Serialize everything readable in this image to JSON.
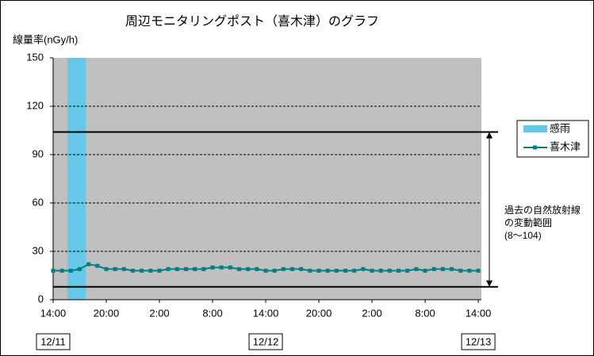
{
  "chart_data": {
    "type": "line",
    "title": "周辺モニタリングポスト（喜木津）のグラフ",
    "y_label": "線量率(nGy/h)",
    "x": [
      0,
      1,
      2,
      3,
      4,
      5,
      6,
      7,
      8,
      9,
      10,
      11,
      12,
      13,
      14,
      15,
      16,
      17,
      18,
      19,
      20,
      21,
      22,
      23,
      24,
      25,
      26,
      27,
      28,
      29,
      30,
      31,
      32,
      33,
      34,
      35,
      36,
      37,
      38,
      39,
      40,
      41,
      42,
      43,
      44,
      45,
      46,
      47,
      48
    ],
    "series": [
      {
        "name": "喜木津",
        "color": "#008080",
        "values": [
          18,
          18,
          18,
          19,
          22,
          21,
          19,
          19,
          19,
          18,
          18,
          18,
          18,
          19,
          19,
          19,
          19,
          19,
          20,
          20,
          20,
          19,
          19,
          19,
          18,
          18,
          19,
          19,
          19,
          18,
          18,
          18,
          18,
          18,
          18,
          19,
          18,
          18,
          18,
          18,
          18,
          19,
          18,
          19,
          19,
          19,
          18,
          18,
          18
        ]
      }
    ],
    "rain": {
      "name": "感雨",
      "color": "#66c8e8",
      "periods": [
        [
          1.6,
          3.7
        ]
      ]
    },
    "range": [
      8,
      104
    ],
    "range_label": [
      "過去の自然放射線",
      "の変動範囲",
      "(8～104)"
    ],
    "xlim": [
      0,
      48.35
    ],
    "xticks": [
      {
        "value": 0,
        "label": "14:00"
      },
      {
        "value": 6,
        "label": "20:00"
      },
      {
        "value": 12,
        "label": "2:00"
      },
      {
        "value": 18,
        "label": "8:00"
      },
      {
        "value": 24,
        "label": "14:00"
      },
      {
        "value": 30,
        "label": "20:00"
      },
      {
        "value": 36,
        "label": "2:00"
      },
      {
        "value": 42,
        "label": "8:00"
      },
      {
        "value": 48,
        "label": "14:00"
      }
    ],
    "date_labels": [
      {
        "value": 0,
        "label": "12/11"
      },
      {
        "value": 24,
        "label": "12/12"
      },
      {
        "value": 48,
        "label": "12/13"
      }
    ],
    "ylim": [
      0,
      150
    ],
    "yticks": [
      0,
      30,
      60,
      90,
      120,
      150
    ],
    "grid": true
  }
}
